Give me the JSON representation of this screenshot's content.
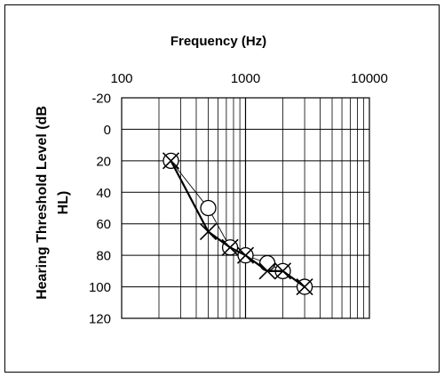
{
  "chart_data": {
    "type": "line",
    "xlabel": "Frequency (Hz)",
    "ylabel_lines": [
      "Hearing Threshold Level (dB",
      "HL)"
    ],
    "x_scale": "log",
    "xlim": [
      100,
      10000
    ],
    "x_tick_labels": [
      "100",
      "1000",
      "10000"
    ],
    "x_tick_values": [
      100,
      1000,
      10000
    ],
    "y_reversed": true,
    "ylim": [
      -20,
      120
    ],
    "y_tick_values": [
      -20,
      0,
      20,
      40,
      60,
      80,
      100,
      120
    ],
    "y_tick_labels": [
      "-20",
      "0",
      "20",
      "40",
      "60",
      "80",
      "100",
      "120"
    ],
    "grid": true,
    "series": [
      {
        "marker": "circle",
        "line_style": "thin",
        "points": [
          [
            250,
            20
          ],
          [
            500,
            50
          ],
          [
            750,
            75
          ],
          [
            1000,
            80
          ],
          [
            1500,
            85
          ],
          [
            2000,
            90
          ],
          [
            3000,
            100
          ]
        ]
      },
      {
        "marker": "x",
        "line_style": "thick",
        "points": [
          [
            250,
            20
          ],
          [
            500,
            65
          ],
          [
            750,
            75
          ],
          [
            1000,
            80
          ],
          [
            1500,
            90
          ],
          [
            2000,
            90
          ],
          [
            3000,
            100
          ]
        ]
      }
    ]
  }
}
